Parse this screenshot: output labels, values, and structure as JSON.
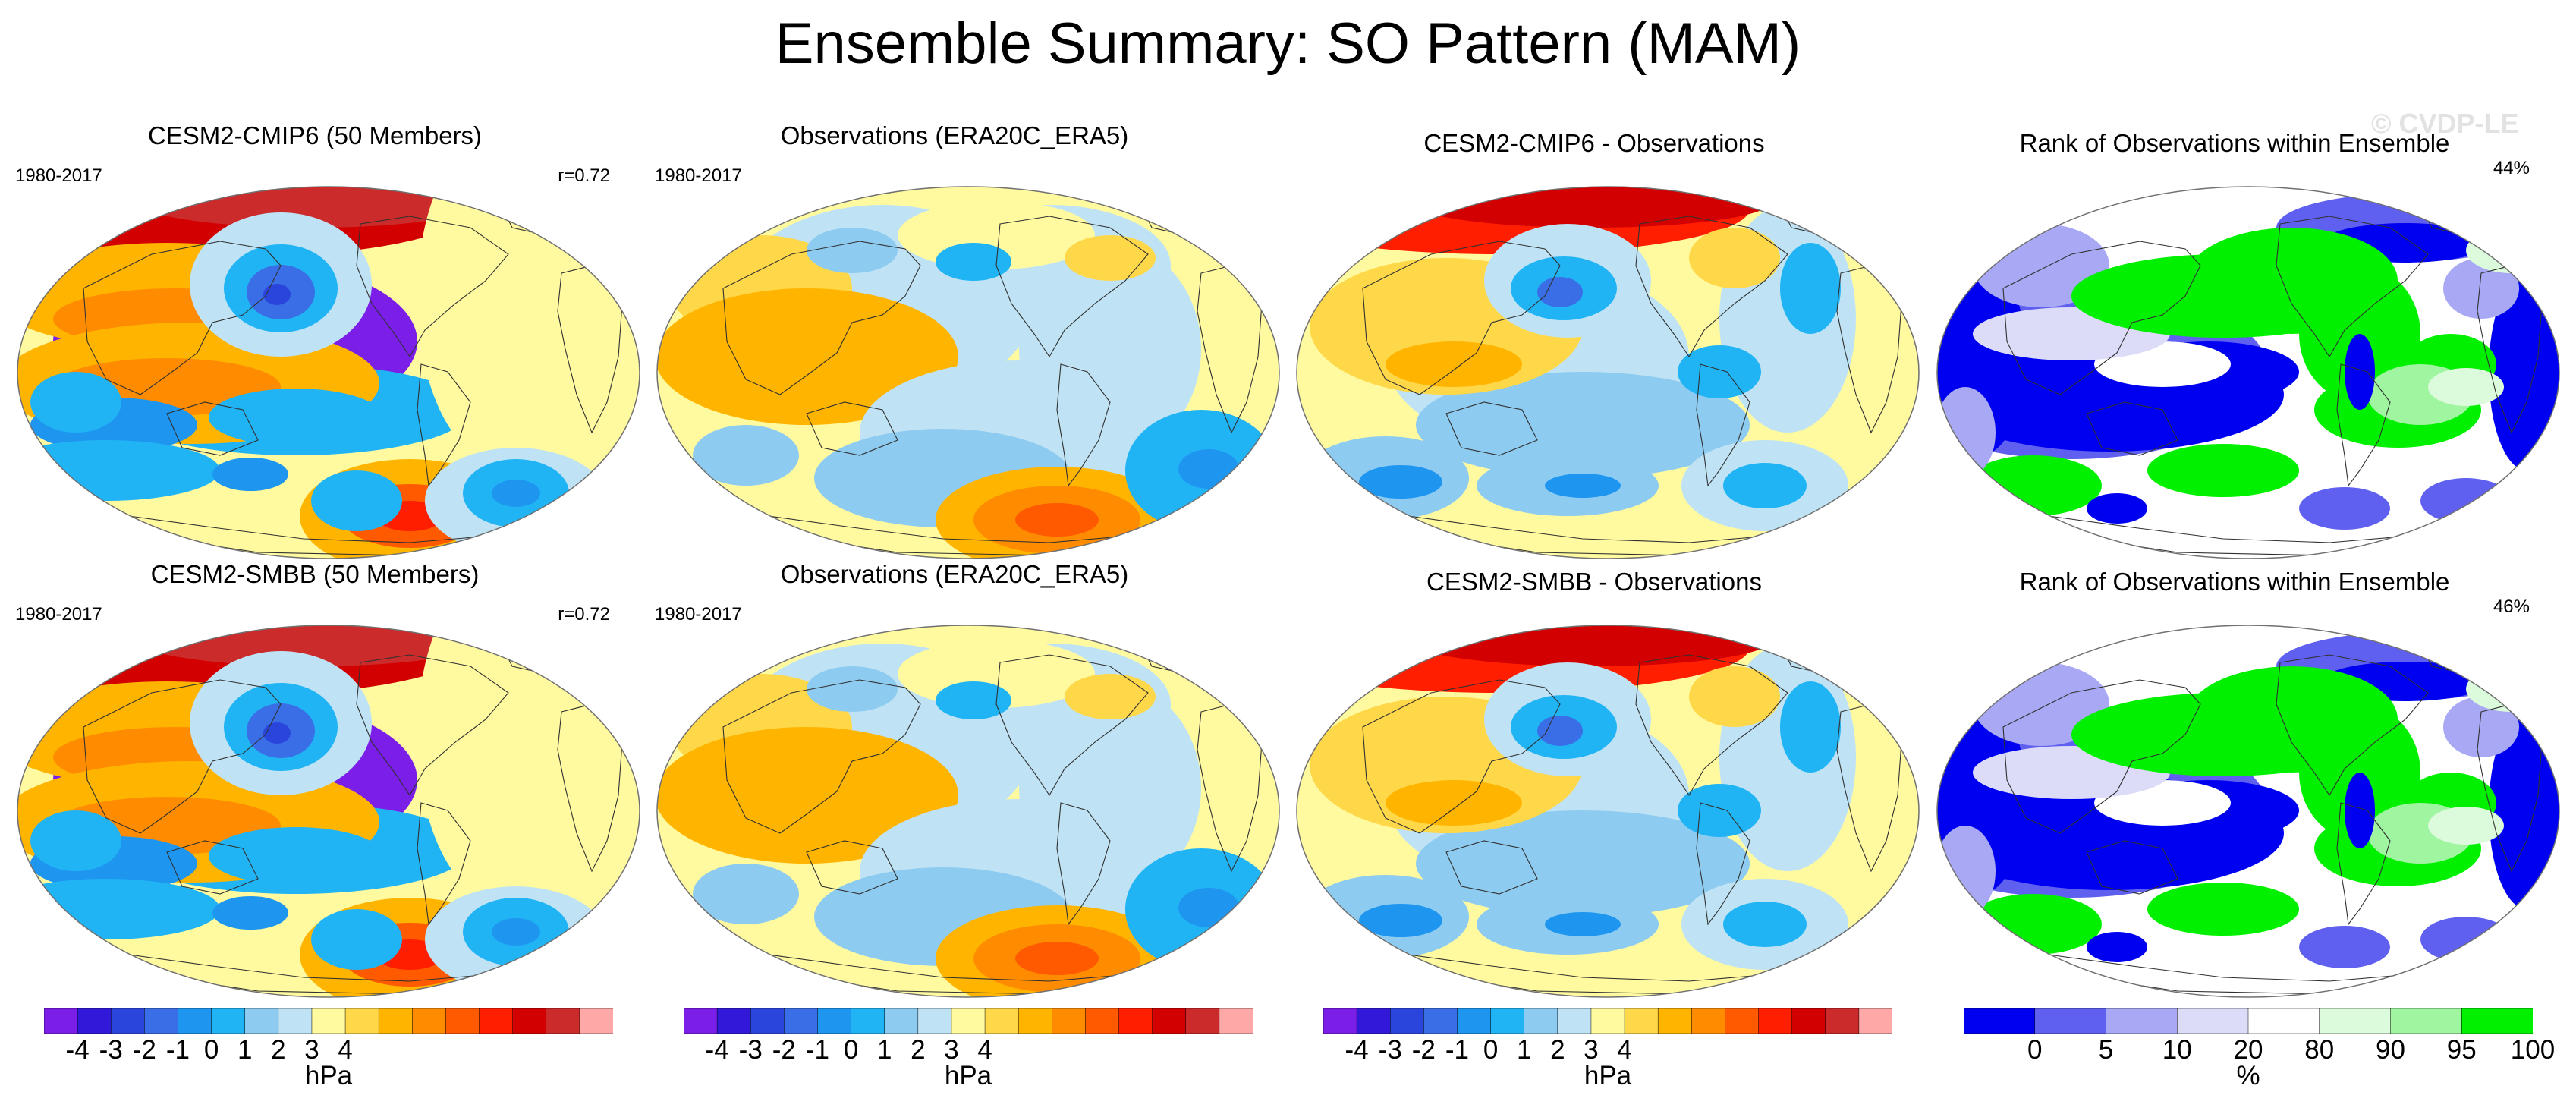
{
  "title": "Ensemble Summary: SO Pattern (MAM)",
  "watermark": "© CVDP-LE",
  "panels": [
    {
      "title": "CESM2-CMIP6 (50 Members)",
      "period": "1980-2017",
      "corner": "r=0.72",
      "map_type": "pattern",
      "variant": "model"
    },
    {
      "title": "Observations (ERA20C_ERA5)",
      "period": "1980-2017",
      "corner": "",
      "map_type": "pattern",
      "variant": "obs"
    },
    {
      "title": "CESM2-CMIP6 - Observations",
      "period": "",
      "corner": "",
      "map_type": "pattern",
      "variant": "diff"
    },
    {
      "title": "Rank of Observations within Ensemble",
      "period": "",
      "corner": "44%",
      "map_type": "rank",
      "variant": "rank"
    },
    {
      "title": "CESM2-SMBB (50 Members)",
      "period": "1980-2017",
      "corner": "r=0.72",
      "map_type": "pattern",
      "variant": "model"
    },
    {
      "title": "Observations (ERA20C_ERA5)",
      "period": "1980-2017",
      "corner": "",
      "map_type": "pattern",
      "variant": "obs"
    },
    {
      "title": "CESM2-SMBB - Observations",
      "period": "",
      "corner": "",
      "map_type": "pattern",
      "variant": "diff"
    },
    {
      "title": "Rank of Observations within Ensemble",
      "period": "",
      "corner": "46%",
      "map_type": "rank",
      "variant": "rank"
    }
  ],
  "colorbars": [
    {
      "units": "hPa",
      "ticks": [
        "-4",
        "-3",
        "-2",
        "-1",
        "0",
        "1",
        "2",
        "3",
        "4"
      ],
      "tick_bins": [
        1,
        2,
        3,
        4,
        5,
        6,
        7,
        8,
        9
      ]
    },
    {
      "units": "hPa",
      "ticks": [
        "-4",
        "-3",
        "-2",
        "-1",
        "0",
        "1",
        "2",
        "3",
        "4"
      ],
      "tick_bins": [
        1,
        2,
        3,
        4,
        5,
        6,
        7,
        8,
        9
      ]
    },
    {
      "units": "hPa",
      "ticks": [
        "-4",
        "-3",
        "-2",
        "-1",
        "0",
        "1",
        "2",
        "3",
        "4"
      ],
      "tick_bins": [
        1,
        2,
        3,
        4,
        5,
        6,
        7,
        8,
        9
      ]
    },
    {
      "units": "%",
      "ticks": [
        "0",
        "5",
        "10",
        "20",
        "80",
        "90",
        "95",
        "100"
      ],
      "tick_bins": [
        1,
        2,
        3,
        4,
        5,
        6,
        7,
        8
      ]
    }
  ],
  "palettes": {
    "pattern": [
      "#7a1ee8",
      "#3218d8",
      "#2a45dc",
      "#3a6ee6",
      "#1e96f0",
      "#20b4f5",
      "#8ecbf0",
      "#bfe3f4",
      "#fffaa0",
      "#ffd84a",
      "#ffb400",
      "#ff8c00",
      "#ff5a00",
      "#ff1e00",
      "#d20000",
      "#cc2b2b",
      "#ffa8a8"
    ],
    "rank": [
      "#0000f0",
      "#6060f0",
      "#a8a8f4",
      "#dcdcf8",
      "#ffffff",
      "#dcfadc",
      "#a0f5a0",
      "#00f000"
    ]
  },
  "colors": {
    "land_outline": "#303030",
    "map_border": "#707070"
  }
}
